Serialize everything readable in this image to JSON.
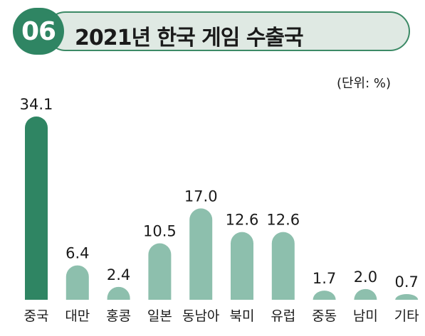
{
  "badge": "06",
  "title": "2021년 한국 게임 수출국",
  "unit": "(단위: %)",
  "colors": {
    "accent": "#2f8563",
    "bar": "#8dbfad",
    "highlight_bar": "#2f8563",
    "title_fill": "#dfe9e3"
  },
  "chart_data": {
    "type": "bar",
    "categories": [
      "중국",
      "대만",
      "홍콩",
      "일본",
      "동남아",
      "북미",
      "유럽",
      "중동",
      "남미",
      "기타"
    ],
    "values": [
      34.1,
      6.4,
      2.4,
      10.5,
      17.0,
      12.6,
      12.6,
      1.7,
      2.0,
      0.7
    ],
    "value_labels": [
      "34.1",
      "6.4",
      "2.4",
      "10.5",
      "17.0",
      "12.6",
      "12.6",
      "1.7",
      "2.0",
      "0.7"
    ],
    "highlight": "중국",
    "ylim": [
      0,
      34.1
    ],
    "grid": false,
    "legend": "none"
  }
}
